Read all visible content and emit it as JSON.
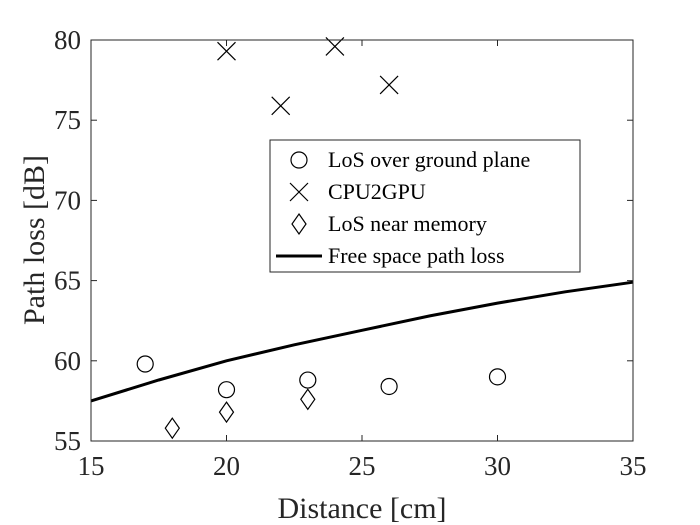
{
  "chart_data": {
    "type": "scatter",
    "title": "",
    "xlabel": "Distance [cm]",
    "ylabel": "Path loss [dB]",
    "xlim": [
      15,
      35
    ],
    "ylim": [
      55,
      80
    ],
    "xticks": [
      15,
      20,
      25,
      30,
      35
    ],
    "yticks": [
      55,
      60,
      65,
      70,
      75,
      80
    ],
    "grid": false,
    "legend_position": "center-right",
    "series": [
      {
        "name": "LoS over ground plane",
        "marker": "circle",
        "color": "#000000",
        "x": [
          17,
          20,
          23,
          26,
          30
        ],
        "y": [
          59.8,
          58.2,
          58.8,
          58.4,
          59.0
        ]
      },
      {
        "name": "CPU2GPU",
        "marker": "x",
        "color": "#000000",
        "x": [
          20,
          22,
          24,
          26
        ],
        "y": [
          79.3,
          75.9,
          79.6,
          77.2
        ]
      },
      {
        "name": "LoS near memory",
        "marker": "diamond",
        "color": "#000000",
        "x": [
          18,
          20,
          23
        ],
        "y": [
          55.8,
          56.8,
          57.6
        ]
      },
      {
        "name": "Free space path loss",
        "marker": "line",
        "color": "#000000",
        "x": [
          15,
          17.5,
          20,
          22.5,
          25,
          27.5,
          30,
          32.5,
          35
        ],
        "y": [
          57.5,
          58.8,
          60.0,
          61.0,
          61.9,
          62.8,
          63.6,
          64.3,
          64.9
        ]
      }
    ]
  }
}
